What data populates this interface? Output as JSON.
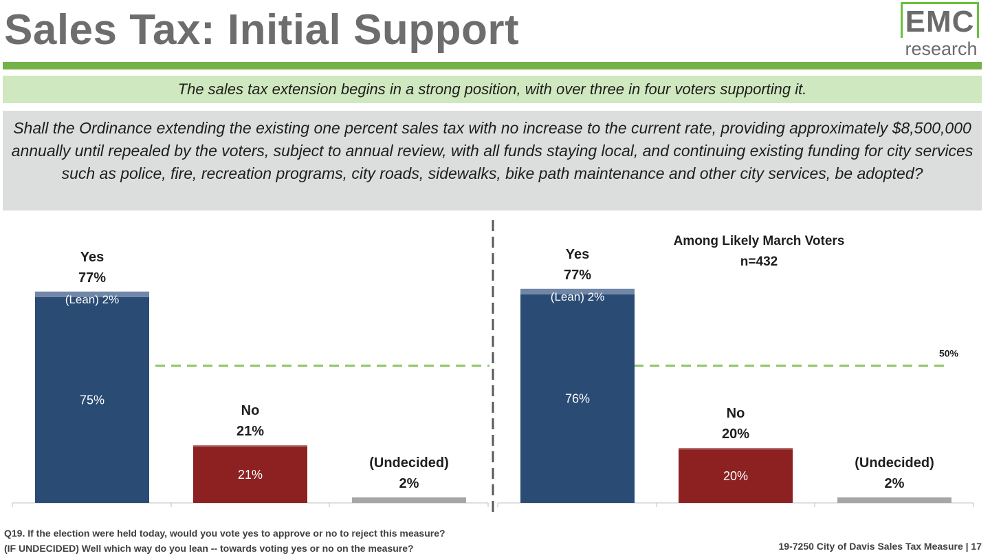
{
  "title": "Sales Tax: Initial Support",
  "logo": {
    "line1": "EMC",
    "line2": "research"
  },
  "headline": "The sales tax extension begins in a strong position, with over three in four voters supporting it.",
  "question_text": "Shall the Ordinance extending the existing one percent sales tax with no increase to the current rate, providing approximately $8,500,000 annually until repealed by the voters, subject to annual review, with all funds staying local, and continuing existing funding for city services such as police, fire, recreation programs, city roads, sidewalks, bike path maintenance and other city services, be adopted?",
  "footer": {
    "q_line1": "Q19. If the election were held today, would you vote yes to approve or no to reject this measure?",
    "q_line2": "(IF UNDECIDED) Well which way do you lean -- towards voting yes or no on the measure?",
    "project": "19-7250 City of Davis Sales Tax Measure | 17"
  },
  "colors": {
    "yes_firm": "#2a4b73",
    "yes_lean": "#7087a8",
    "no_firm": "#8d2121",
    "no_lean": "#a95c5c",
    "undecided": "#a6a6a6",
    "reference_line": "#8cc864",
    "divider": "#595959"
  },
  "chart_data": [
    {
      "type": "bar",
      "stacked": true,
      "title": "",
      "subtitle": "",
      "ylim": [
        0,
        100
      ],
      "grid": false,
      "reference_line": {
        "value": 50,
        "label": ""
      },
      "categories": [
        {
          "name": "Yes",
          "total": 77,
          "total_label": "77%",
          "firm": 75,
          "firm_label": "75%",
          "lean": 2,
          "lean_label": "(Lean) 2%",
          "color": "yes"
        },
        {
          "name": "No",
          "total": 21,
          "total_label": "21%",
          "firm": 20.5,
          "firm_label": "21%",
          "lean": 0.5,
          "lean_label": "",
          "color": "no"
        },
        {
          "name": "(Undecided)",
          "total": 2,
          "total_label": "2%",
          "firm": 2,
          "firm_label": "",
          "lean": 0,
          "lean_label": "",
          "color": "undecided"
        }
      ]
    },
    {
      "type": "bar",
      "stacked": true,
      "title": "Among Likely March Voters",
      "subtitle": "n=432",
      "ylim": [
        0,
        100
      ],
      "grid": false,
      "reference_line": {
        "value": 50,
        "label": "50%"
      },
      "categories": [
        {
          "name": "Yes",
          "total": 77,
          "total_label": "77%",
          "firm": 76,
          "firm_label": "76%",
          "lean": 2,
          "lean_label": "(Lean) 2%",
          "color": "yes"
        },
        {
          "name": "No",
          "total": 20,
          "total_label": "20%",
          "firm": 19.5,
          "firm_label": "20%",
          "lean": 0.5,
          "lean_label": "",
          "color": "no"
        },
        {
          "name": "(Undecided)",
          "total": 2,
          "total_label": "2%",
          "firm": 2,
          "firm_label": "",
          "lean": 0,
          "lean_label": "",
          "color": "undecided"
        }
      ]
    }
  ]
}
